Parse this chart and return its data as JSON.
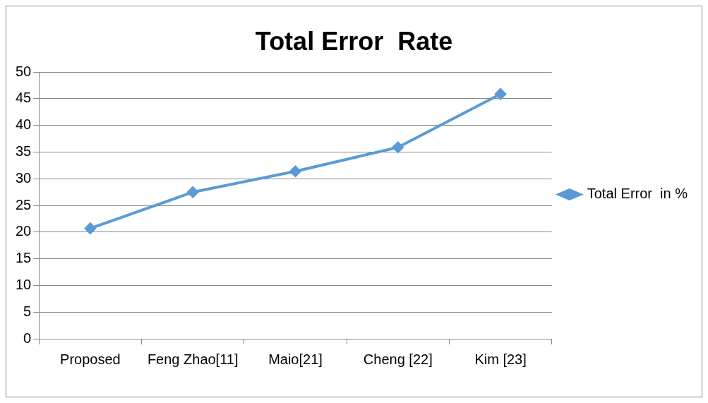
{
  "chart_data": {
    "type": "line",
    "title": "Total Error  Rate",
    "categories": [
      "Proposed",
      "Feng Zhao[11]",
      "Maio[21]",
      "Cheng [22]",
      "Kim [23]"
    ],
    "series": [
      {
        "name": "Total Error  in %",
        "color": "#5b9bd5",
        "values": [
          20.7,
          27.5,
          31.4,
          35.9,
          45.9
        ]
      }
    ],
    "ylim": [
      0,
      50
    ],
    "yticks": [
      0,
      5,
      10,
      15,
      20,
      25,
      30,
      35,
      40,
      45,
      50
    ],
    "grid": "y",
    "legend": "right",
    "marker": "diamond",
    "line_style": "solid"
  }
}
